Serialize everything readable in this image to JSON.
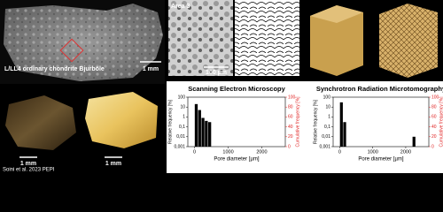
{
  "panels": {
    "meteorite_label": "L/LL4 ordinary chondrite Bjurböle",
    "scale_top": "1 mm",
    "scale_bottom_left": "1 mm",
    "scale_bottom_right": "1 mm",
    "sem_area": "Area 3",
    "sem_scale": "100 µm",
    "credit": "Soini et al. 2023 PEPI"
  },
  "chart_data": [
    {
      "type": "bar",
      "title": "Scanning Electron Microscopy",
      "x_label": "Pore diameter [µm]",
      "y_label": "Relative frequency [%]",
      "y2_label": "Cumulative frequency [%]",
      "x": [
        50,
        150,
        250,
        350,
        450
      ],
      "values": [
        20,
        5,
        0.8,
        0.4,
        0.3
      ],
      "color": "#000000",
      "xlim": [
        -200,
        2700
      ],
      "xticks": [
        0,
        1000,
        2000
      ],
      "ylim": [
        0.001,
        100
      ],
      "log_y": true,
      "yticks": [
        {
          "value": 0.001,
          "label": "0,001"
        },
        {
          "value": 0.01,
          "label": "0,01"
        },
        {
          "value": 0.1,
          "label": "0,1"
        },
        1,
        10,
        100
      ],
      "y2lim": [
        0,
        100
      ],
      "y2ticks": [
        0,
        20,
        40,
        60,
        80,
        100
      ],
      "y2_color": "#e02020"
    },
    {
      "type": "bar",
      "title": "Synchrotron Radiation Microtomography",
      "x_label": "Pore diameter [µm]",
      "y_label": "Relative frequency [%]",
      "y2_label": "Cumulative frequency [%]",
      "x": [
        50,
        150,
        2250
      ],
      "values": [
        30,
        0.3,
        0.01
      ],
      "color": "#000000",
      "xlim": [
        -200,
        2700
      ],
      "xticks": [
        0,
        1000,
        2000
      ],
      "ylim": [
        0.001,
        100
      ],
      "log_y": true,
      "yticks": [
        {
          "value": 0.001,
          "label": "0,001"
        },
        {
          "value": 0.01,
          "label": "0,01"
        },
        {
          "value": 0.1,
          "label": "0,1"
        },
        1,
        10,
        100
      ],
      "y2lim": [
        0,
        100
      ],
      "y2ticks": [
        0,
        20,
        40,
        60,
        80,
        100
      ],
      "y2_color": "#e02020"
    }
  ]
}
